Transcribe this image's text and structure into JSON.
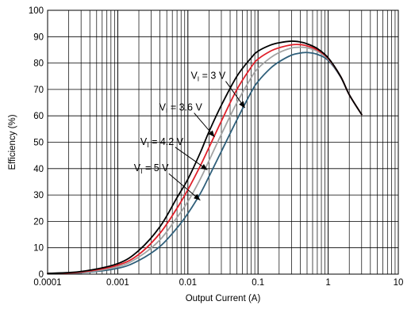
{
  "chart_data": {
    "type": "line",
    "xlabel": "Output Current (A)",
    "ylabel": "Efficiency (%)",
    "x_scale": "log",
    "xlim": [
      0.0001,
      10
    ],
    "ylim": [
      0,
      100
    ],
    "x_ticks": [
      "0.0001",
      "0.001",
      "0.01",
      "0.1",
      "1",
      "10"
    ],
    "y_ticks": [
      "0",
      "10",
      "20",
      "30",
      "40",
      "50",
      "60",
      "70",
      "80",
      "90",
      "100"
    ],
    "grid": true,
    "series": [
      {
        "name": "VI = 3 V",
        "color": "#000000",
        "points": [
          [
            0.0001,
            0.3
          ],
          [
            0.0003,
            1
          ],
          [
            0.001,
            4
          ],
          [
            0.002,
            9
          ],
          [
            0.004,
            18
          ],
          [
            0.007,
            29
          ],
          [
            0.01,
            36
          ],
          [
            0.015,
            46
          ],
          [
            0.02,
            54
          ],
          [
            0.03,
            64
          ],
          [
            0.05,
            75
          ],
          [
            0.08,
            82
          ],
          [
            0.1,
            84.5
          ],
          [
            0.15,
            86.8
          ],
          [
            0.2,
            87.7
          ],
          [
            0.3,
            88.3
          ],
          [
            0.4,
            88
          ],
          [
            0.5,
            87.3
          ],
          [
            0.7,
            85.5
          ],
          [
            1,
            82
          ],
          [
            1.5,
            75
          ],
          [
            2,
            68
          ],
          [
            3,
            60.5
          ]
        ]
      },
      {
        "name": "VI = 3.6 V",
        "color": "#e0202a",
        "points": [
          [
            0.0001,
            0.25
          ],
          [
            0.0003,
            0.8
          ],
          [
            0.001,
            3.4
          ],
          [
            0.002,
            7.5
          ],
          [
            0.004,
            15.5
          ],
          [
            0.007,
            25
          ],
          [
            0.01,
            32
          ],
          [
            0.015,
            41
          ],
          [
            0.02,
            48
          ],
          [
            0.03,
            58
          ],
          [
            0.05,
            70
          ],
          [
            0.08,
            78.5
          ],
          [
            0.1,
            81.5
          ],
          [
            0.15,
            84.5
          ],
          [
            0.2,
            85.8
          ],
          [
            0.3,
            86.9
          ],
          [
            0.4,
            87
          ],
          [
            0.5,
            86.5
          ],
          [
            0.7,
            85
          ],
          [
            1,
            81.8
          ],
          [
            1.5,
            75
          ],
          [
            2,
            68
          ],
          [
            3,
            60.5
          ]
        ]
      },
      {
        "name": "VI = 4.2 V",
        "color": "#a3a3a3",
        "points": [
          [
            0.0001,
            0.2
          ],
          [
            0.0003,
            0.6
          ],
          [
            0.001,
            2.8
          ],
          [
            0.002,
            6.5
          ],
          [
            0.004,
            13
          ],
          [
            0.007,
            21.5
          ],
          [
            0.01,
            27.5
          ],
          [
            0.015,
            36
          ],
          [
            0.02,
            43
          ],
          [
            0.03,
            53
          ],
          [
            0.05,
            65
          ],
          [
            0.08,
            74.5
          ],
          [
            0.1,
            78
          ],
          [
            0.15,
            82
          ],
          [
            0.2,
            84
          ],
          [
            0.3,
            85.7
          ],
          [
            0.4,
            86
          ],
          [
            0.5,
            85.8
          ],
          [
            0.7,
            84.5
          ],
          [
            1,
            81.5
          ],
          [
            1.5,
            75
          ],
          [
            2,
            68
          ],
          [
            3,
            60.5
          ]
        ]
      },
      {
        "name": "VI = 5 V",
        "color": "#2f5f7a",
        "points": [
          [
            0.0001,
            0.15
          ],
          [
            0.0003,
            0.5
          ],
          [
            0.001,
            2.2
          ],
          [
            0.002,
            5.2
          ],
          [
            0.004,
            10.5
          ],
          [
            0.007,
            17.5
          ],
          [
            0.01,
            23
          ],
          [
            0.015,
            30.5
          ],
          [
            0.02,
            37
          ],
          [
            0.03,
            46.5
          ],
          [
            0.05,
            58.5
          ],
          [
            0.08,
            69
          ],
          [
            0.1,
            73
          ],
          [
            0.15,
            78
          ],
          [
            0.2,
            80.5
          ],
          [
            0.3,
            83
          ],
          [
            0.4,
            83.8
          ],
          [
            0.5,
            84
          ],
          [
            0.7,
            83.3
          ],
          [
            1,
            81
          ],
          [
            1.5,
            74.8
          ],
          [
            2,
            68
          ],
          [
            3,
            60.5
          ]
        ]
      }
    ],
    "annotations": [
      {
        "label_main": "V",
        "label_sub": "I",
        "label_rest": " = 3 V",
        "text_at": [
          0.011,
          74
        ],
        "arrow_to": [
          0.065,
          63
        ]
      },
      {
        "label_main": "V",
        "label_sub": "I",
        "label_rest": " = 3.6 V",
        "text_at": [
          0.0039,
          62
        ],
        "arrow_to": [
          0.024,
          52
        ]
      },
      {
        "label_main": "V",
        "label_sub": "I",
        "label_rest": " = 4.2 V",
        "text_at": [
          0.0021,
          49
        ],
        "arrow_to": [
          0.019,
          39.5
        ]
      },
      {
        "label_main": "V",
        "label_sub": "I",
        "label_rest": " = 5 V",
        "text_at": [
          0.0017,
          39
        ],
        "arrow_to": [
          0.015,
          28
        ]
      }
    ]
  }
}
